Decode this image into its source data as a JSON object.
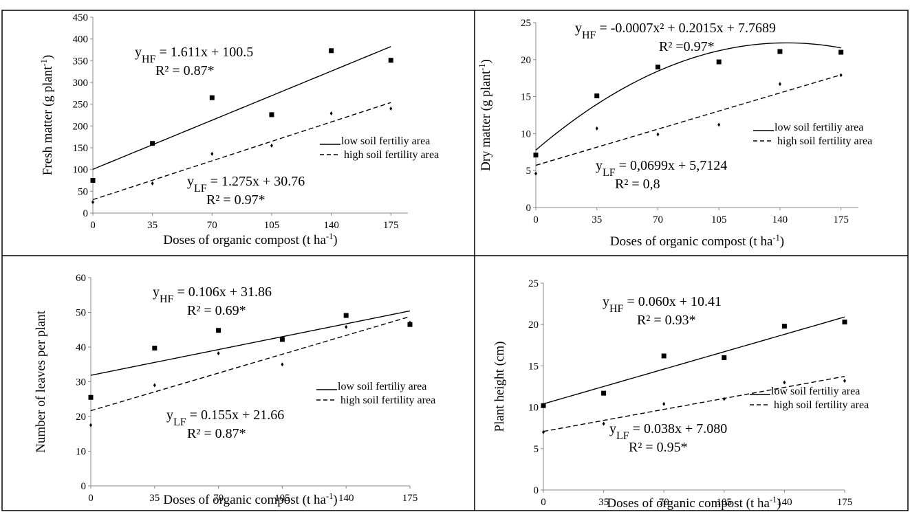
{
  "legend_labels": {
    "low": "low soil fertiliy  area",
    "high": "high soil fertility  area"
  },
  "charts": [
    {
      "type": "scatter",
      "title": "",
      "xlabel": "Doses of organic compost (t ha",
      "xlabel_sup": "-1",
      "xlabel_tail": ")",
      "ylabel": "Fresh matter (g plant",
      "ylabel_sup": "-1",
      "ylabel_tail": ")",
      "xlim": [
        0,
        185
      ],
      "ylim": [
        0,
        450
      ],
      "xticks": [
        0,
        35,
        70,
        105,
        140,
        175
      ],
      "yticks": [
        0,
        50,
        100,
        150,
        200,
        250,
        300,
        350,
        400,
        450
      ],
      "legend": "middle-right",
      "series": [
        {
          "name": "low soil fertiliy  area",
          "marker": "square",
          "line": "solid",
          "fit": {
            "model": "linear",
            "coeffs": [
              1.611,
              100.5
            ],
            "range": [
              0,
              175
            ]
          },
          "x": [
            0,
            35,
            70,
            105,
            140,
            175
          ],
          "y": [
            75,
            160,
            265,
            226,
            373,
            351
          ]
        },
        {
          "name": "high soil fertility  area",
          "marker": "diamond",
          "line": "dashed",
          "fit": {
            "model": "linear",
            "coeffs": [
              1.275,
              30.76
            ],
            "range": [
              0,
              175
            ]
          },
          "x": [
            0,
            35,
            70,
            105,
            140,
            175
          ],
          "y": [
            25,
            68,
            136,
            155,
            229,
            240
          ]
        }
      ],
      "equations": [
        {
          "y_label": "y",
          "y_sub": "HF",
          "eq": " = 1.611x + 100.5",
          "r2": "R² = 0.87*"
        },
        {
          "y_label": "y",
          "y_sub": "LF",
          "eq": " = 1.275x + 30.76",
          "r2": "R² = 0.97*"
        }
      ]
    },
    {
      "type": "scatter",
      "title": "",
      "xlabel": "Doses of organic compost (t ha",
      "xlabel_sup": "-1",
      "xlabel_tail": ")",
      "ylabel": "Dry matter (g plant",
      "ylabel_sup": "-1",
      "ylabel_tail": ")",
      "xlim": [
        0,
        185
      ],
      "ylim": [
        0,
        25
      ],
      "xticks": [
        0,
        35,
        70,
        105,
        140,
        175
      ],
      "yticks": [
        0,
        5,
        10,
        15,
        20,
        25
      ],
      "legend": "middle-right",
      "series": [
        {
          "name": "low soil fertiliy  area",
          "marker": "square",
          "line": "solid",
          "fit": {
            "model": "quadratic",
            "coeffs": [
              -0.0007,
              0.2015,
              7.7689
            ],
            "range": [
              0,
              175
            ]
          },
          "x": [
            0,
            35,
            70,
            105,
            140,
            175
          ],
          "y": [
            7.1,
            15.1,
            19.0,
            19.7,
            21.1,
            21.0
          ]
        },
        {
          "name": "high soil fertility  area",
          "marker": "diamond",
          "line": "dashed",
          "fit": {
            "model": "linear",
            "coeffs": [
              0.0699,
              5.7124
            ],
            "range": [
              0,
              175
            ]
          },
          "x": [
            0,
            35,
            70,
            105,
            140,
            175
          ],
          "y": [
            4.6,
            10.7,
            9.9,
            11.2,
            16.7,
            17.9
          ]
        }
      ],
      "equations": [
        {
          "y_label": "y",
          "y_sub": "HF",
          "eq": " = -0.0007x² + 0.2015x + 7.7689",
          "r2": "R² =0.97*"
        },
        {
          "y_label": "y",
          "y_sub": "LF",
          "eq": " = 0,0699x + 5,7124",
          "r2": "R² = 0,8"
        }
      ]
    },
    {
      "type": "scatter",
      "title": "",
      "xlabel": "Doses of organic compost (t ha",
      "xlabel_sup": "-1",
      "xlabel_tail": ")",
      "ylabel": "Number of leaves per plant",
      "ylabel_sup": "",
      "ylabel_tail": "",
      "xlim": [
        0,
        175
      ],
      "ylim": [
        0,
        60
      ],
      "xticks": [
        0,
        35,
        70,
        105,
        140,
        175
      ],
      "yticks": [
        0,
        10,
        20,
        30,
        40,
        50,
        60
      ],
      "legend": "middle-right",
      "series": [
        {
          "name": "low soil fertiliy  area",
          "marker": "square",
          "line": "solid",
          "fit": {
            "model": "linear",
            "coeffs": [
              0.106,
              31.86
            ],
            "range": [
              0,
              175
            ]
          },
          "x": [
            0,
            35,
            70,
            105,
            140,
            175
          ],
          "y": [
            25.5,
            39.7,
            44.8,
            42.2,
            49.1,
            46.5
          ]
        },
        {
          "name": "high soil fertility  area",
          "marker": "diamond",
          "line": "dashed",
          "fit": {
            "model": "linear",
            "coeffs": [
              0.155,
              21.66
            ],
            "range": [
              0,
              175
            ]
          },
          "x": [
            0,
            35,
            70,
            105,
            140,
            175
          ],
          "y": [
            17.5,
            29.0,
            38.2,
            35.0,
            45.8,
            47.0
          ]
        }
      ],
      "equations": [
        {
          "y_label": "y",
          "y_sub": "HF",
          "eq": " = 0.106x + 31.86",
          "r2": "R² = 0.69*"
        },
        {
          "y_label": "y",
          "y_sub": "LF",
          "eq": " = 0.155x + 21.66",
          "r2": "R² = 0.87*"
        }
      ]
    },
    {
      "type": "scatter",
      "title": "",
      "xlabel": "Doses of organic compost (t ha",
      "xlabel_sup": "-1",
      "xlabel_tail": ")",
      "ylabel": "Plant height (cm)",
      "ylabel_sup": "",
      "ylabel_tail": "",
      "xlim": [
        0,
        175
      ],
      "ylim": [
        0,
        25
      ],
      "xticks": [
        0,
        35,
        70,
        105,
        140,
        175
      ],
      "yticks": [
        0,
        5,
        10,
        15,
        20,
        25
      ],
      "legend": "middle-right",
      "series": [
        {
          "name": "low soil fertiliy  area",
          "marker": "square",
          "line": "solid",
          "fit": {
            "model": "linear",
            "coeffs": [
              0.06,
              10.41
            ],
            "range": [
              0,
              175
            ]
          },
          "x": [
            0,
            35,
            70,
            105,
            140,
            175
          ],
          "y": [
            10.2,
            11.7,
            16.2,
            16.0,
            19.8,
            20.3
          ]
        },
        {
          "name": "high soil fertility  area",
          "marker": "diamond",
          "line": "dashed",
          "fit": {
            "model": "linear",
            "coeffs": [
              0.038,
              7.08
            ],
            "range": [
              0,
              175
            ]
          },
          "x": [
            0,
            35,
            70,
            105,
            140,
            175
          ],
          "y": [
            7.0,
            8.0,
            10.4,
            11.0,
            13.0,
            13.2
          ]
        }
      ],
      "equations": [
        {
          "y_label": "y",
          "y_sub": "HF",
          "eq": " = 0.060x + 10.41",
          "r2": "R² = 0.93*"
        },
        {
          "y_label": "y",
          "y_sub": "LF",
          "eq": " = 0.038x + 7.080",
          "r2": "R² = 0.95*"
        }
      ]
    }
  ]
}
